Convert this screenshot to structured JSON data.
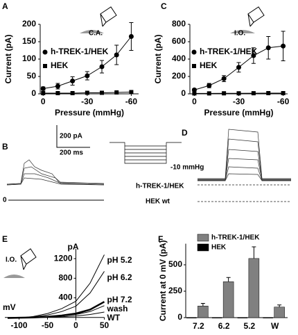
{
  "chart_data": [
    {
      "type": "line",
      "panel": "A",
      "annotation": "C.A.",
      "xlabel": "Pressure (mmHg)",
      "ylabel": "Current (pA)",
      "x": [
        0,
        -10,
        -20,
        -30,
        -40,
        -50,
        -60
      ],
      "xlim": [
        2,
        -65
      ],
      "xticks": [
        0,
        -30,
        -60
      ],
      "ylim": [
        0,
        200
      ],
      "yticks": [
        0,
        50,
        100,
        150,
        200
      ],
      "series": [
        {
          "name": "h-TREK-1/HEK",
          "color": "#000000",
          "marker": "circle",
          "values": [
            15,
            22,
            37,
            52,
            78,
            112,
            165
          ],
          "errors": [
            5,
            8,
            12,
            12,
            18,
            28,
            40
          ]
        },
        {
          "name": "HEK",
          "color": "#000000",
          "marker": "square",
          "values": [
            2,
            2,
            2,
            3,
            3,
            4,
            5
          ]
        }
      ]
    },
    {
      "type": "line",
      "panel": "C",
      "annotation": "I.O.",
      "xlabel": "Pressure (mmHg)",
      "ylabel": "Current (pA)",
      "x": [
        0,
        -10,
        -20,
        -30,
        -40,
        -50,
        -60
      ],
      "xlim": [
        3,
        -63
      ],
      "xticks": [
        0,
        -30,
        -60
      ],
      "ylim": [
        0,
        800
      ],
      "yticks": [
        0,
        200,
        400,
        600,
        800
      ],
      "series": [
        {
          "name": "h-TREK-1/HEK",
          "color": "#000000",
          "marker": "circle",
          "values": [
            45,
            95,
            175,
            305,
            440,
            530,
            550
          ],
          "errors": [
            15,
            25,
            35,
            55,
            90,
            130,
            170
          ]
        },
        {
          "name": "HEK",
          "color": "#000000",
          "marker": "square",
          "values": [
            5,
            5,
            6,
            6,
            7,
            8,
            8
          ]
        }
      ]
    },
    {
      "type": "line",
      "panel": "E",
      "annotation": "I.O.",
      "xlabel": "mV",
      "ylabel": "pA",
      "axes_at_origin": true,
      "x": [
        -120,
        -100,
        -75,
        -50,
        -25,
        0,
        25,
        50
      ],
      "xlim": [
        -125,
        50
      ],
      "xticks": [
        -100,
        -50,
        0,
        50
      ],
      "ylim": [
        -60,
        1400
      ],
      "yticks": [
        400,
        800,
        1200
      ],
      "series": [
        {
          "name": "pH 5.2",
          "color": "#000000",
          "width": 1,
          "values": [
            -20,
            -10,
            20,
            80,
            180,
            330,
            700,
            1280
          ]
        },
        {
          "name": "pH 6.2",
          "color": "#000000",
          "width": 1,
          "values": [
            -15,
            -8,
            10,
            50,
            120,
            230,
            500,
            940
          ]
        },
        {
          "name": "pH 7.2",
          "color": "#000000",
          "width": 2.5,
          "values": [
            -10,
            -5,
            0,
            15,
            40,
            80,
            160,
            320
          ]
        },
        {
          "name": "wash",
          "color": "#000000",
          "width": 1,
          "values": [
            -10,
            -5,
            0,
            12,
            30,
            60,
            120,
            240
          ]
        },
        {
          "name": "WT",
          "color": "#000000",
          "width": 1,
          "values": [
            -5,
            -3,
            0,
            5,
            15,
            30,
            60,
            110
          ]
        }
      ]
    },
    {
      "type": "bar",
      "panel": "F",
      "ylabel": "Current at 0 mV (pA)",
      "categories": [
        "7.2",
        "6.2",
        "5.2",
        "W"
      ],
      "ylim": [
        0,
        700
      ],
      "yticks": [
        0,
        250,
        500
      ],
      "series": [
        {
          "name": "h-TREK-1/HEK",
          "color": "#808080",
          "values": [
            110,
            340,
            560,
            100
          ],
          "errors": [
            25,
            40,
            110,
            20
          ]
        },
        {
          "name": "HEK",
          "color": "#000000",
          "values": [
            2,
            2,
            2,
            2
          ]
        }
      ]
    }
  ],
  "traces": {
    "panel_b": "B",
    "panel_d": "D",
    "scale_current": "200 pA",
    "scale_time": "200 ms",
    "zero": "0",
    "protocol": "-10 mmHg",
    "cell_treks": "h-TREK-1/HEK",
    "cell_hek": "HEK wt"
  }
}
